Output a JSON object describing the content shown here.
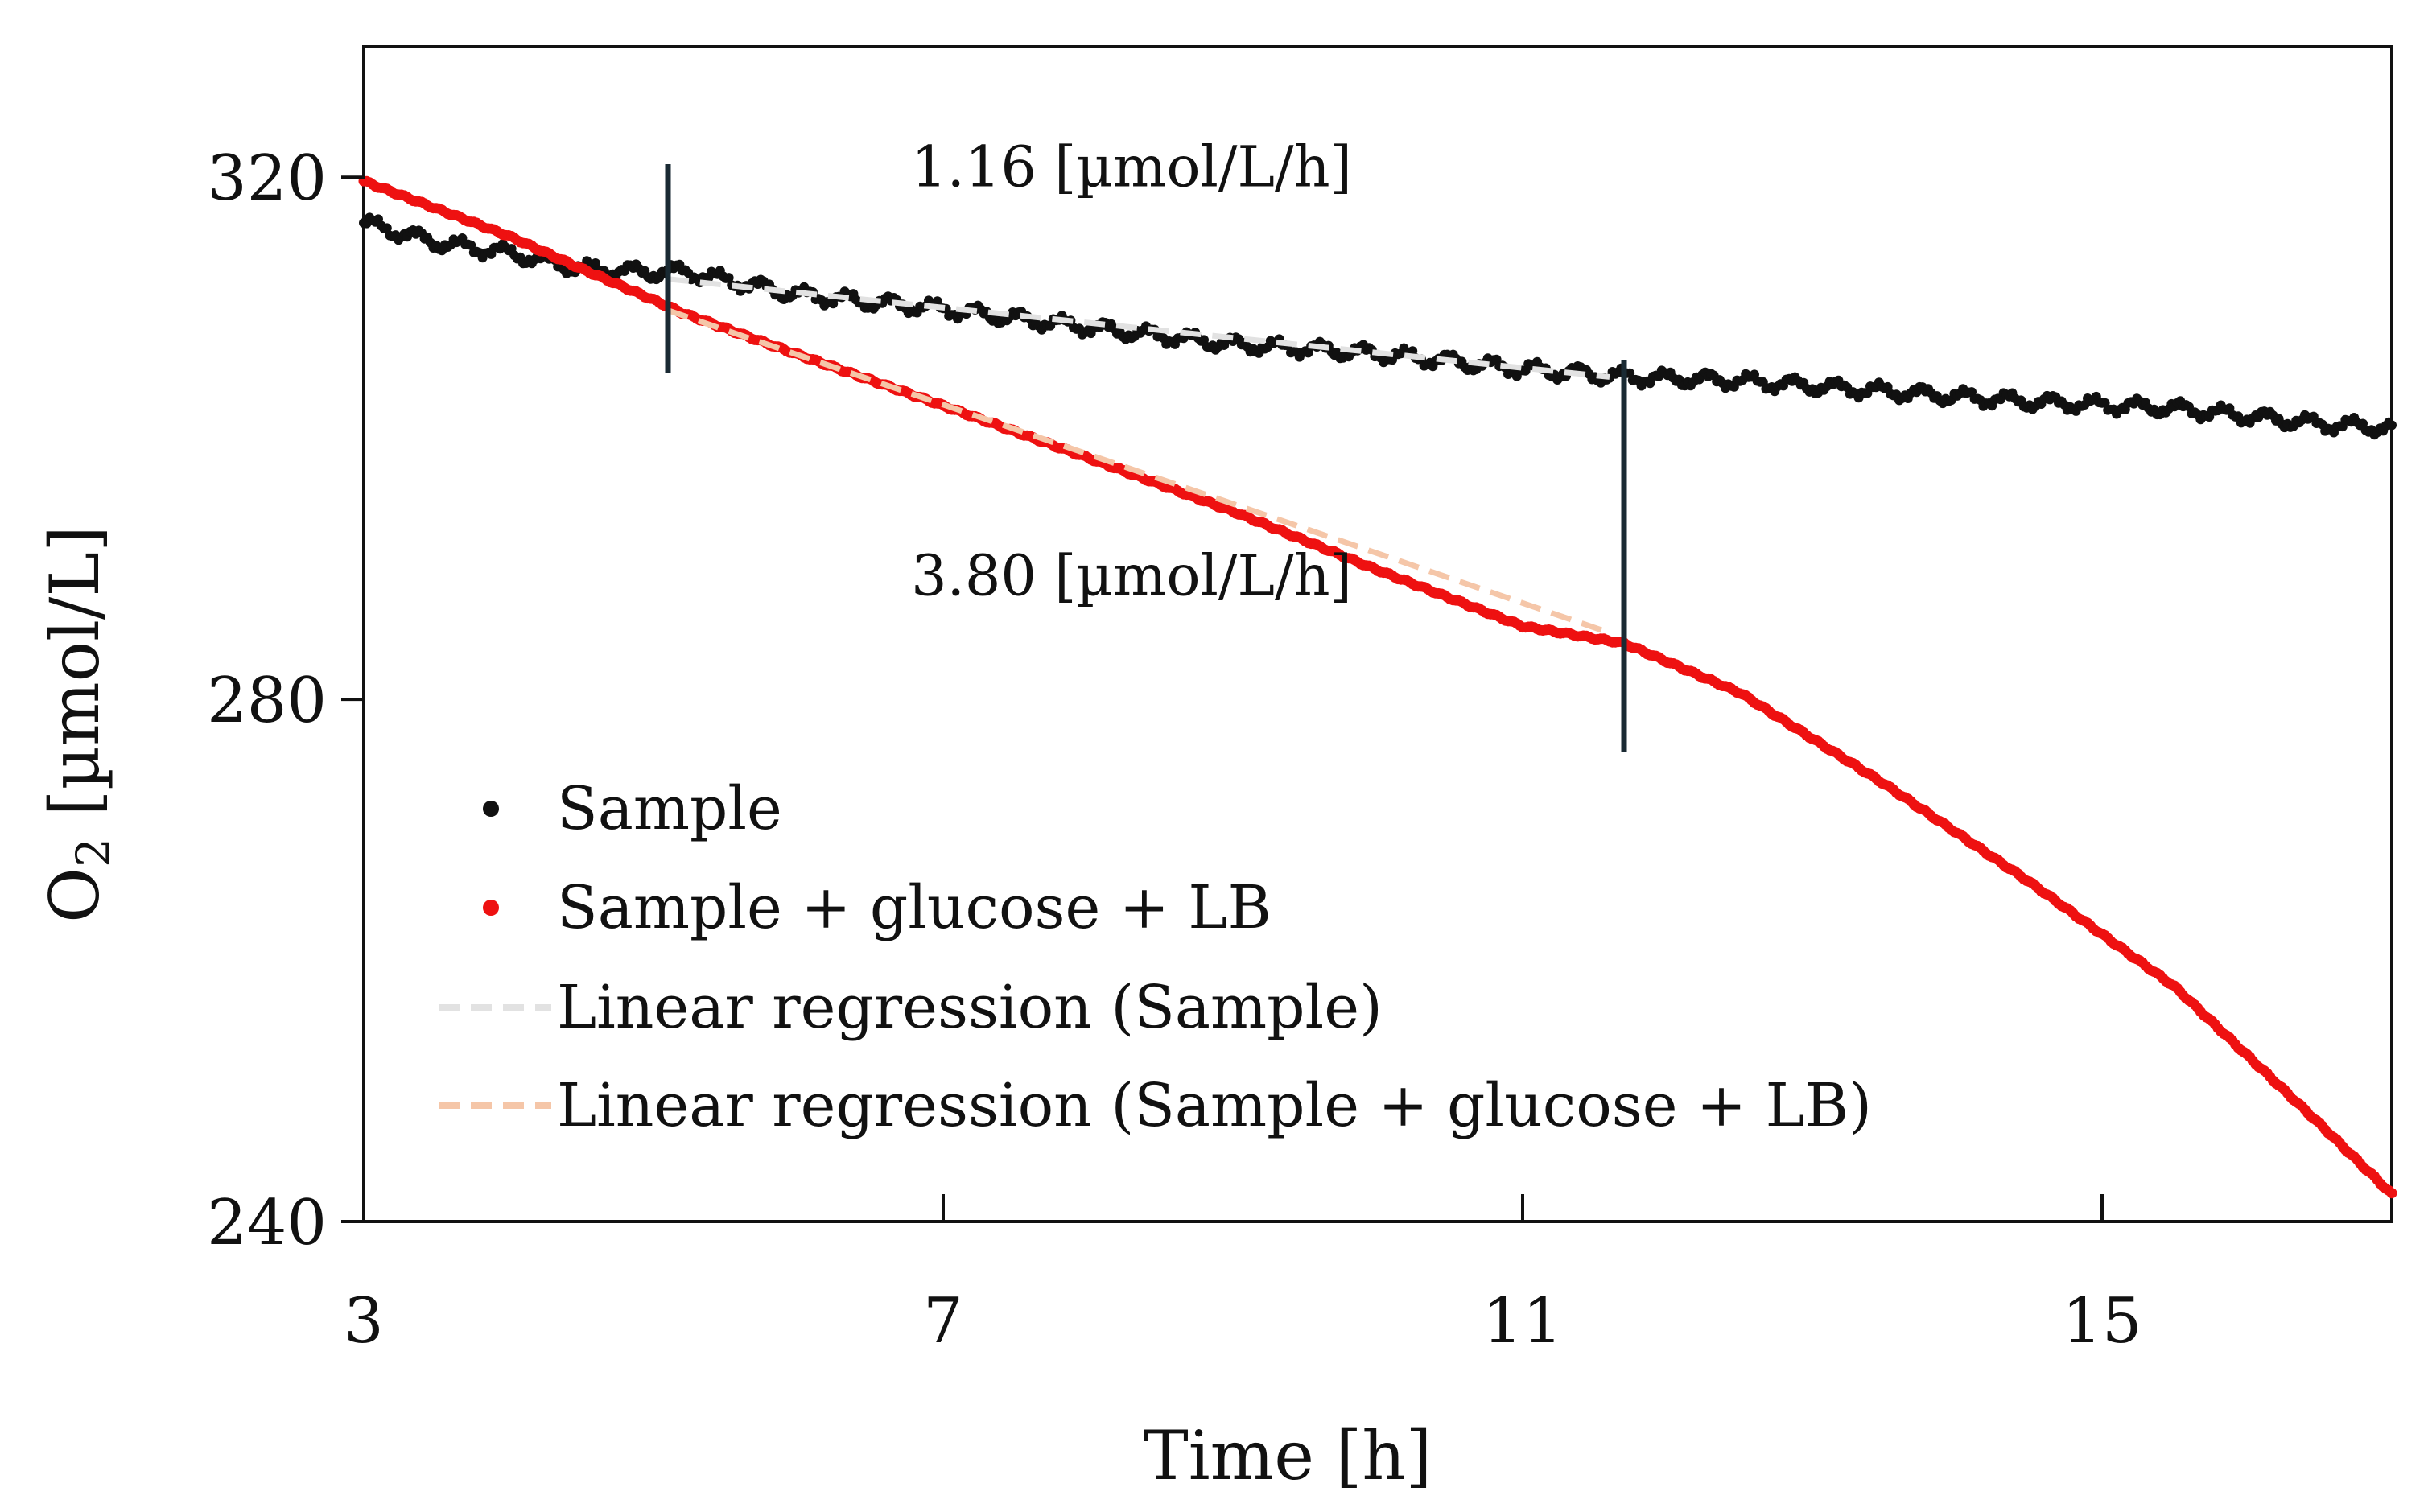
{
  "chart_data": {
    "type": "scatter",
    "title": "",
    "xlabel": "Time [h]",
    "ylabel": "O2 [µmol/L]",
    "ylabel_main": "O",
    "ylabel_sub": "2",
    "ylabel_rest": " [µmol/L]",
    "xlim": [
      3,
      17
    ],
    "ylim": [
      240,
      330
    ],
    "xticks": [
      3,
      7,
      11,
      15
    ],
    "yticks": [
      240,
      280,
      320
    ],
    "xtick_labels": [
      "3",
      "7",
      "11",
      "15"
    ],
    "ytick_labels": [
      "240",
      "280",
      "320"
    ],
    "series": [
      {
        "name": "Sample",
        "color": "#111111",
        "marker": "dot",
        "points": [
          [
            3.0,
            316.5
          ],
          [
            3.5,
            315.0
          ],
          [
            4.0,
            314.2
          ],
          [
            4.5,
            313.0
          ],
          [
            5.0,
            312.7
          ],
          [
            5.2,
            312.8
          ],
          [
            6.0,
            311.0
          ],
          [
            7.0,
            309.9
          ],
          [
            8.0,
            308.5
          ],
          [
            9.0,
            307.2
          ],
          [
            10.0,
            306.5
          ],
          [
            11.0,
            305.3
          ],
          [
            11.7,
            304.7
          ],
          [
            12.5,
            304.4
          ],
          [
            13.5,
            303.6
          ],
          [
            14.5,
            302.8
          ],
          [
            15.5,
            302.3
          ],
          [
            16.5,
            301.1
          ],
          [
            17.0,
            300.8
          ]
        ]
      },
      {
        "name": "Sample + glucose + LB",
        "color": "#ee1111",
        "marker": "dot",
        "points": [
          [
            3.0,
            319.7
          ],
          [
            3.5,
            317.6
          ],
          [
            4.0,
            315.5
          ],
          [
            4.5,
            313.0
          ],
          [
            5.0,
            310.6
          ],
          [
            5.2,
            309.6
          ],
          [
            6.0,
            306.4
          ],
          [
            7.0,
            302.5
          ],
          [
            8.0,
            298.5
          ],
          [
            9.0,
            294.4
          ],
          [
            10.0,
            289.9
          ],
          [
            11.0,
            285.6
          ],
          [
            11.7,
            284.3
          ],
          [
            12.5,
            280.5
          ],
          [
            13.5,
            273.5
          ],
          [
            14.5,
            266.0
          ],
          [
            15.5,
            258.0
          ],
          [
            16.5,
            247.5
          ],
          [
            17.0,
            242.1
          ]
        ]
      }
    ],
    "regressions": [
      {
        "name": "Linear regression (Sample)",
        "color": "#e2e2e2",
        "dash": "dashed",
        "x_range": [
          5.1,
          11.6
        ],
        "y_range": [
          312.2,
          304.7
        ]
      },
      {
        "name": "Linear regression (Sample + glucose + LB)",
        "color": "#f5c6a8",
        "dash": "dashed",
        "x_range": [
          5.1,
          11.6
        ],
        "y_range": [
          309.8,
          285.1
        ]
      }
    ],
    "boundaries_x": [
      5.1,
      11.7
    ],
    "annotations": [
      {
        "text": "1.16 [µmol/L/h]",
        "x": 8.3,
        "y": 319.3
      },
      {
        "text": "3.80 [µmol/L/h]",
        "x": 8.3,
        "y": 288.0
      }
    ],
    "legend_position": "lower-left",
    "grid": false
  }
}
